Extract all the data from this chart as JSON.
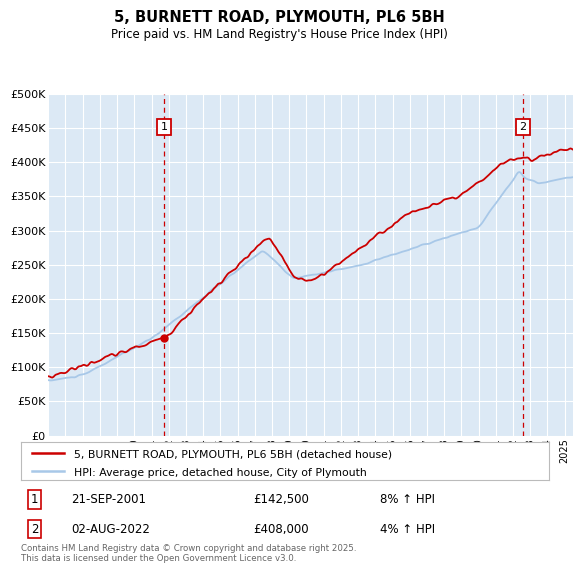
{
  "title": "5, BURNETT ROAD, PLYMOUTH, PL6 5BH",
  "subtitle": "Price paid vs. HM Land Registry's House Price Index (HPI)",
  "ylabel_ticks": [
    "£0",
    "£50K",
    "£100K",
    "£150K",
    "£200K",
    "£250K",
    "£300K",
    "£350K",
    "£400K",
    "£450K",
    "£500K"
  ],
  "ytick_vals": [
    0,
    50000,
    100000,
    150000,
    200000,
    250000,
    300000,
    350000,
    400000,
    450000,
    500000
  ],
  "x_start_year": 1995,
  "x_end_year": 2025,
  "bg_color": "#dce9f5",
  "grid_color": "#ffffff",
  "line1_color": "#cc0000",
  "line2_color": "#a8c8e8",
  "marker1_date": 2001.72,
  "marker2_date": 2022.58,
  "legend1": "5, BURNETT ROAD, PLYMOUTH, PL6 5BH (detached house)",
  "legend2": "HPI: Average price, detached house, City of Plymouth",
  "footer": "Contains HM Land Registry data © Crown copyright and database right 2025.\nThis data is licensed under the Open Government Licence v3.0."
}
